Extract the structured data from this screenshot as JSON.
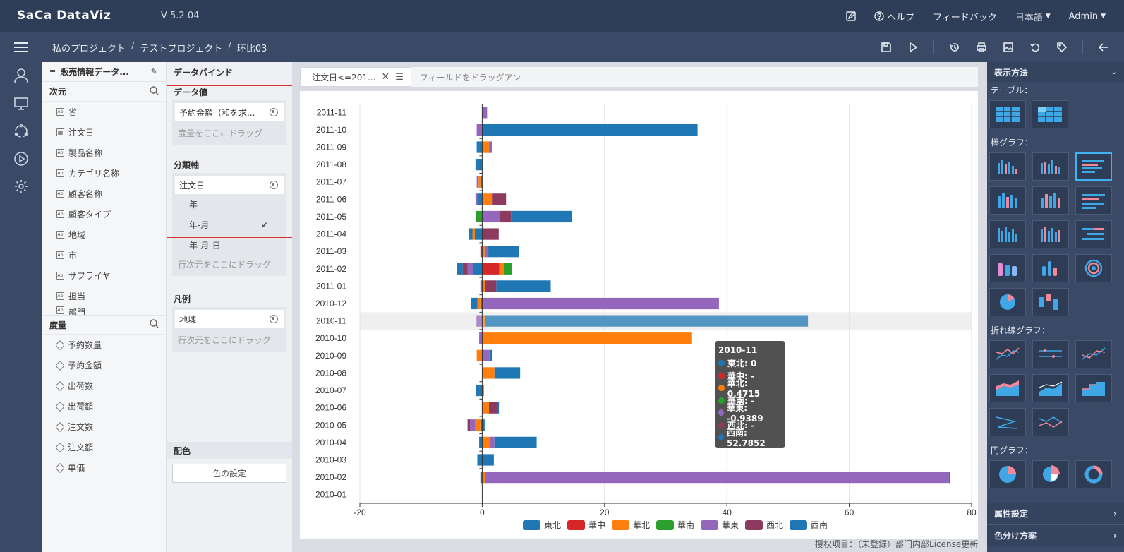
{
  "app": {
    "logo": "SaCa DataViz",
    "version": "V 5.2.04",
    "nav": {
      "help": "ヘルプ",
      "feedback": "フィードバック",
      "language": "日本語",
      "user": "Admin"
    }
  },
  "breadcrumb": {
    "root": "私のプロジェクト",
    "project": "テストプロジェクト",
    "page": "环比03",
    "separator": "/"
  },
  "datasource": {
    "title": "販売情報データ...",
    "dimensions_label": "次元",
    "dimensions": [
      "省",
      "注文日",
      "製品名称",
      "カテゴリ名称",
      "顧客名称",
      "顧客タイプ",
      "地域",
      "市",
      "サプライヤ",
      "担当",
      "部門"
    ],
    "measures_label": "度量",
    "measures": [
      "予約数量",
      "予約金額",
      "出荷数",
      "出荷額",
      "注文数",
      "注文額",
      "単価"
    ]
  },
  "binding": {
    "title": "データバインド",
    "value_label": "データ値",
    "value_chip": "予約金額（和を求...",
    "value_hint": "度量をここにドラッグ",
    "axis_label": "分類軸",
    "axis_chip": "注文日",
    "axis_options": [
      "年",
      "年-月",
      "年-月-日"
    ],
    "axis_hint": "行次元をここにドラッグ",
    "legend_label": "凡例",
    "legend_chip": "地域",
    "legend_hint": "行次元をここにドラッグ",
    "color_label": "配色",
    "color_button": "色の設定"
  },
  "filter": {
    "tab": "注文日<=201...",
    "hint": "フィールドをドラッグアン"
  },
  "chart_data": {
    "type": "bar",
    "orientation": "horizontal",
    "stacked": true,
    "categories": [
      "2010-01",
      "2010-02",
      "2010-03",
      "2010-04",
      "2010-05",
      "2010-06",
      "2010-07",
      "2010-08",
      "2010-09",
      "2010-10",
      "2010-11",
      "2010-12",
      "2011-01",
      "2011-02",
      "2011-03",
      "2011-04",
      "2011-05",
      "2011-06",
      "2011-07",
      "2011-08",
      "2011-09",
      "2011-10",
      "2011-11"
    ],
    "xlim": [
      -20,
      80
    ],
    "xticks": [
      -20,
      0,
      20,
      40,
      60,
      80
    ],
    "highlight_category": "2010-11",
    "series": [
      {
        "name": "東北",
        "color": "#1f77b4",
        "values": [
          0,
          -0.3,
          -0.8,
          -0.5,
          -0.3,
          0,
          -0.5,
          0,
          0,
          0,
          0,
          -0.3,
          0,
          -1.5,
          0,
          -1.2,
          0,
          -0.8,
          -0.3,
          -0.8,
          -0.5,
          0,
          0
        ]
      },
      {
        "name": "華中",
        "color": "#d62728",
        "values": [
          0,
          0,
          0,
          0,
          0,
          0,
          0,
          0,
          0,
          0,
          0,
          0,
          0,
          2.8,
          -0.3,
          0,
          0,
          0,
          0,
          0,
          0,
          0,
          0
        ]
      },
      {
        "name": "華北",
        "color": "#ff7f0e",
        "values": [
          0,
          0.5,
          0,
          1.3,
          -0.9,
          1.1,
          0.3,
          2.0,
          -0.9,
          34.3,
          0.4715,
          -0.5,
          0.5,
          0.8,
          0.4,
          -0.4,
          0,
          1.7,
          -0.3,
          0,
          1.1,
          0,
          0
        ]
      },
      {
        "name": "華南",
        "color": "#2ca02c",
        "values": [
          0,
          0,
          0,
          0,
          0,
          0,
          0,
          0,
          0,
          0,
          0,
          0,
          0,
          1.2,
          0,
          0,
          -1.0,
          0,
          0,
          0,
          0,
          0,
          0
        ]
      },
      {
        "name": "華東",
        "color": "#9467bd",
        "values": [
          0,
          75.8,
          0,
          0.7,
          -0.8,
          0,
          0,
          0,
          1.2,
          -0.5,
          -0.9389,
          38.7,
          -0.3,
          -0.9,
          0.6,
          0,
          2.9,
          -0.3,
          -0.3,
          0,
          0.5,
          -0.9,
          0.8
        ]
      },
      {
        "name": "西北",
        "color": "#8c3a5e",
        "values": [
          0,
          0,
          0,
          0,
          -0.4,
          1.5,
          0,
          0,
          0,
          0,
          0,
          0,
          1.8,
          -0.8,
          0,
          2.7,
          1.8,
          2.2,
          0,
          0,
          0,
          0,
          0
        ]
      },
      {
        "name": "西南",
        "color": "#1f77b4",
        "values": [
          0,
          0.2,
          1.9,
          6.9,
          0.4,
          0.1,
          -0.5,
          4.2,
          0.4,
          0,
          52.7852,
          -1.0,
          8.9,
          -0.9,
          5.0,
          -0.6,
          10.0,
          0,
          0,
          -0.3,
          -0.4,
          35.2,
          0
        ]
      }
    ]
  },
  "tooltip": {
    "title": "2010-11",
    "rows": [
      {
        "label": "東北: 0",
        "color": "#1f77b4"
      },
      {
        "label": "華中: -",
        "color": "#d62728"
      },
      {
        "label": "華北: 0.4715",
        "color": "#ff7f0e"
      },
      {
        "label": "華南: -",
        "color": "#2ca02c"
      },
      {
        "label": "華東: -0.9389",
        "color": "#9467bd"
      },
      {
        "label": "西北: -",
        "color": "#8c3a5e"
      },
      {
        "label": "西南: 52.7852",
        "color": "#1f77b4"
      }
    ]
  },
  "right_panel": {
    "title": "表示方法",
    "sections": {
      "table": "テーブル：",
      "bar": "棒グラフ：",
      "line": "折れ線グラフ：",
      "pie": "円グラフ："
    },
    "property_settings": "属性設定",
    "color_scheme": "色分け方案"
  },
  "footnote": "授权项目：（未登録）部门内部License更新"
}
